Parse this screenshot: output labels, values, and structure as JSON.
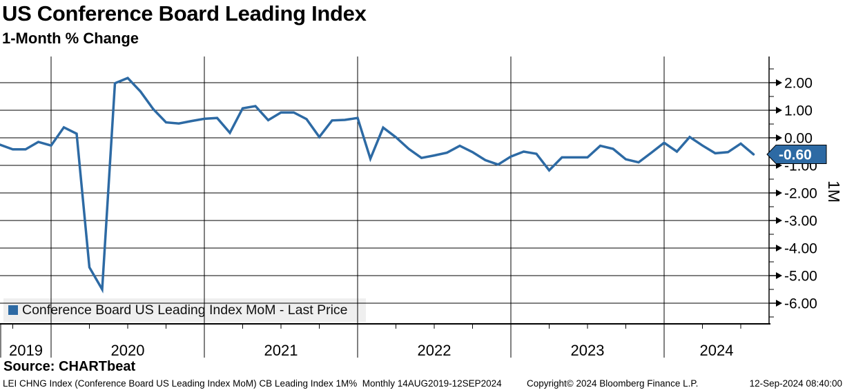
{
  "header": {
    "title": "US Conference Board Leading Index",
    "subtitle": "1-Month % Change"
  },
  "chart_data": {
    "type": "line",
    "title": "US Conference Board Leading Index",
    "subtitle": "1-Month % Change",
    "legend": "Conference Board US Leading Index MoM - Last Price",
    "legend_position": "bottom-left",
    "grid": true,
    "line_color": "#2d6aa4",
    "months": [
      "Sep 2019",
      "Oct 2019",
      "Nov 2019",
      "Dec 2019",
      "Jan 2020",
      "Feb 2020",
      "Mar 2020",
      "Apr 2020",
      "May 2020",
      "Jun 2020",
      "Jul 2020",
      "Aug 2020",
      "Sep 2020",
      "Oct 2020",
      "Nov 2020",
      "Dec 2020",
      "Jan 2021",
      "Feb 2021",
      "Mar 2021",
      "Apr 2021",
      "May 2021",
      "Jun 2021",
      "Jul 2021",
      "Aug 2021",
      "Sep 2021",
      "Oct 2021",
      "Nov 2021",
      "Dec 2021",
      "Jan 2022",
      "Feb 2022",
      "Mar 2022",
      "Apr 2022",
      "May 2022",
      "Jun 2022",
      "Jul 2022",
      "Aug 2022",
      "Sep 2022",
      "Oct 2022",
      "Nov 2022",
      "Dec 2022",
      "Jan 2023",
      "Feb 2023",
      "Mar 2023",
      "Apr 2023",
      "May 2023",
      "Jun 2023",
      "Jul 2023",
      "Aug 2023",
      "Sep 2023",
      "Oct 2023",
      "Nov 2023",
      "Dec 2023",
      "Jan 2024",
      "Feb 2024",
      "Mar 2024",
      "Apr 2024",
      "May 2024",
      "Jun 2024",
      "Jul 2024",
      "Aug 2024"
    ],
    "values": [
      -0.25,
      -0.42,
      -0.42,
      -0.15,
      -0.28,
      0.38,
      0.15,
      -4.7,
      -5.5,
      1.98,
      2.17,
      1.68,
      1.04,
      0.56,
      0.52,
      0.61,
      0.69,
      0.72,
      0.18,
      1.07,
      1.15,
      0.64,
      0.92,
      0.92,
      0.68,
      0.03,
      0.63,
      0.65,
      0.72,
      -0.76,
      0.37,
      0.02,
      -0.4,
      -0.73,
      -0.64,
      -0.54,
      -0.29,
      -0.52,
      -0.81,
      -0.97,
      -0.68,
      -0.5,
      -0.58,
      -1.18,
      -0.71,
      -0.71,
      -0.71,
      -0.29,
      -0.4,
      -0.78,
      -0.89,
      -0.54,
      -0.18,
      -0.5,
      0.03,
      -0.28,
      -0.56,
      -0.52,
      -0.21,
      -0.6
    ],
    "x_labels_years": [
      "2019",
      "2020",
      "2021",
      "2022",
      "2023",
      "2024"
    ],
    "yticks": [
      2,
      1,
      0,
      -1,
      -2,
      -3,
      -4,
      -5,
      -6
    ],
    "ytick_labels": [
      "2.00",
      "1.00",
      "0.00",
      "-1.00",
      "-2.00",
      "-3.00",
      "-4.00",
      "-5.00",
      "-6.00"
    ],
    "ylim": [
      -6.75,
      2.95
    ],
    "last_price": -0.6,
    "last_price_label": "-0.60",
    "axis_unit": "1M"
  },
  "footer": {
    "source": "Source: CHARTbeat",
    "description": "LEI CHNG Index (Conference Board US Leading Index MoM) CB Leading Index 1M%  Monthly 14AUG2019-12SEP2024",
    "copyright": "Copyright© 2024 Bloomberg Finance L.P.",
    "timestamp": "12-Sep-2024 08:40:00"
  }
}
